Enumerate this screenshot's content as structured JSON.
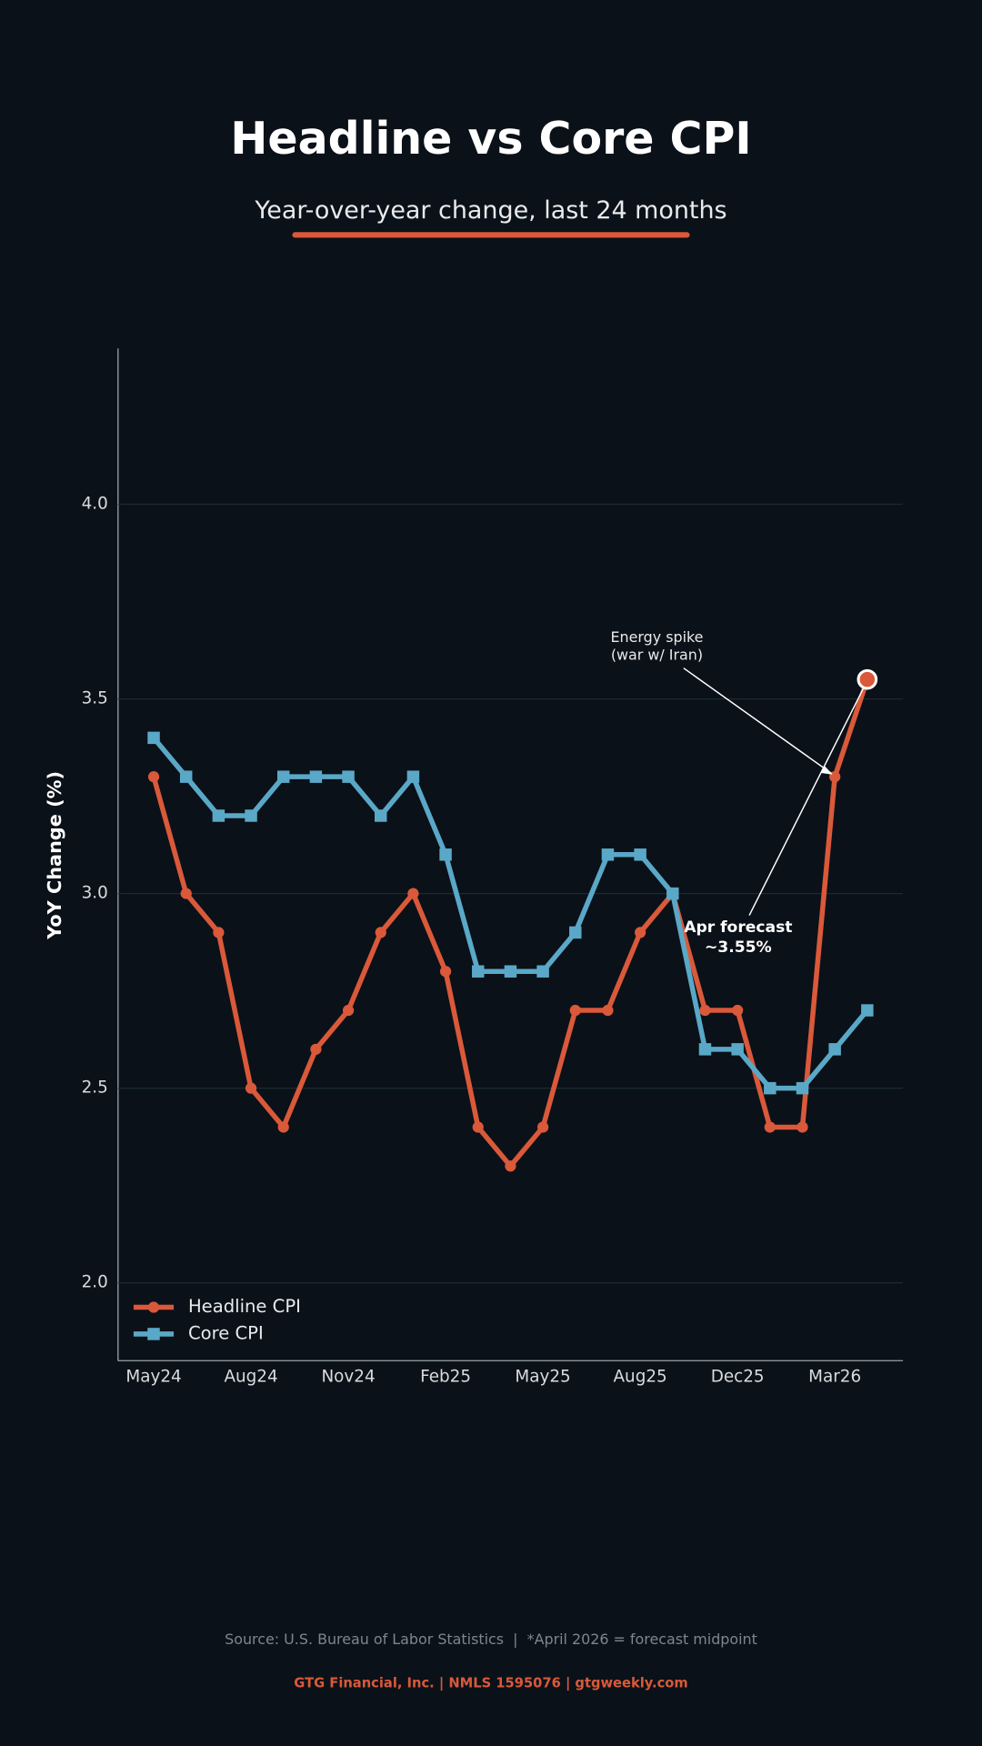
{
  "chart_data": {
    "type": "line",
    "title": "Headline vs Core CPI",
    "subtitle": "Year-over-year change, last 24 months",
    "y_label": "YoY Change (%)",
    "categories": [
      "May24",
      null,
      null,
      "Aug24",
      null,
      null,
      "Nov24",
      null,
      null,
      "Feb25",
      null,
      null,
      "May25",
      null,
      null,
      "Aug25",
      null,
      null,
      "Dec25",
      null,
      null,
      "Mar26",
      null
    ],
    "series": [
      {
        "name": "Headline CPI",
        "color": "#d9593a",
        "marker": "circle",
        "values": [
          3.3,
          3.0,
          2.9,
          2.5,
          2.4,
          2.6,
          2.7,
          2.9,
          3.0,
          2.8,
          2.4,
          2.3,
          2.4,
          2.7,
          2.7,
          2.9,
          3.0,
          2.7,
          2.7,
          2.4,
          2.4,
          3.3,
          3.55
        ]
      },
      {
        "name": "Core CPI",
        "color": "#5aa8c8",
        "marker": "square",
        "values": [
          3.4,
          3.3,
          3.2,
          3.2,
          3.3,
          3.3,
          3.3,
          3.2,
          3.3,
          3.1,
          2.8,
          2.8,
          2.8,
          2.9,
          3.1,
          3.1,
          3.0,
          2.6,
          2.6,
          2.5,
          2.5,
          2.6,
          2.7
        ]
      }
    ],
    "ylim": [
      1.8,
      4.4
    ],
    "yticks": [
      {
        "value": 2.0,
        "label": "2.0"
      },
      2.5,
      {
        "value": 3.0,
        "label": "3.0"
      },
      3.5,
      {
        "value": 4.0,
        "label": "4.0"
      }
    ],
    "grid": true,
    "legend": "lower-left",
    "annotations": [
      {
        "lines": [
          "Energy spike",
          "(war w/ Iran)"
        ]
      },
      {
        "lines": [
          "Apr forecast",
          "~3.55%"
        ]
      }
    ],
    "source": "Source: U.S. Bureau of Labor Statistics  |  *April 2026 = forecast midpoint",
    "footer": "GTG Financial, Inc. | NMLS 1595076 | gtgweekly.com"
  }
}
